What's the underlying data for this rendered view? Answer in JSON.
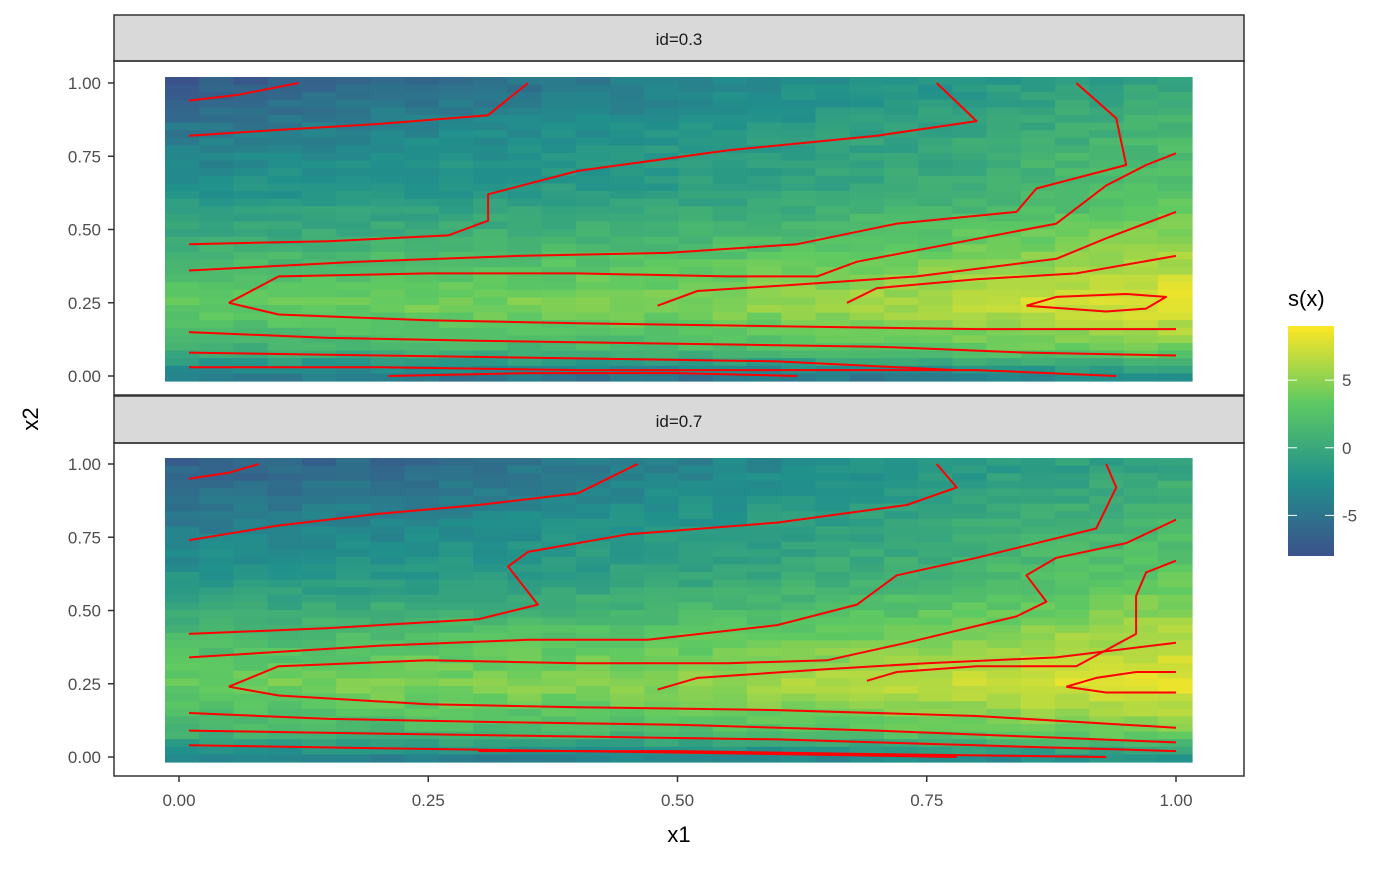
{
  "chart_data": {
    "type": "heatmap",
    "title": "",
    "xlabel": "x1",
    "ylabel": "x2",
    "xlim": [
      0,
      1
    ],
    "ylim": [
      0,
      1
    ],
    "x_ticks": [
      "0.00",
      "0.25",
      "0.50",
      "0.75",
      "1.00"
    ],
    "y_ticks": [
      "0.00",
      "0.25",
      "0.50",
      "0.75",
      "1.00"
    ],
    "grid": false,
    "legend": {
      "title": "s(x)",
      "position": "right",
      "range": [
        -8,
        9
      ],
      "ticks": [
        "-5",
        "0",
        "5"
      ],
      "colors": [
        "#3b528b",
        "#21918c",
        "#5ec962",
        "#fde725"
      ]
    },
    "contour_color": "#ff0000",
    "facets": [
      {
        "strip_label": "id=0.3",
        "heat_field": {
          "grid_x": [
            0,
            0.25,
            0.5,
            0.75,
            1.0
          ],
          "grid_y": [
            0,
            0.1,
            0.25,
            0.4,
            0.6,
            0.8,
            1.0
          ],
          "values": [
            [
              -4.5,
              -5.5,
              -6.0,
              -5.0,
              -3.5
            ],
            [
              0.5,
              1.0,
              1.5,
              2.5,
              4.0
            ],
            [
              3.0,
              4.0,
              4.5,
              6.5,
              8.5
            ],
            [
              1.0,
              2.0,
              2.5,
              4.0,
              6.0
            ],
            [
              -2.0,
              -1.5,
              -1.0,
              0.5,
              3.0
            ],
            [
              -4.5,
              -3.0,
              -2.0,
              -0.5,
              1.5
            ],
            [
              -7.5,
              -6.0,
              -4.0,
              -2.0,
              -0.5
            ]
          ]
        },
        "contours": [
          [
            [
              0.01,
              0.94
            ],
            [
              0.06,
              0.96
            ],
            [
              0.12,
              1.0
            ]
          ],
          [
            [
              0.01,
              0.82
            ],
            [
              0.1,
              0.84
            ],
            [
              0.2,
              0.86
            ],
            [
              0.31,
              0.89
            ],
            [
              0.35,
              1.0
            ]
          ],
          [
            [
              0.01,
              0.45
            ],
            [
              0.15,
              0.46
            ],
            [
              0.27,
              0.48
            ],
            [
              0.31,
              0.53
            ],
            [
              0.31,
              0.62
            ],
            [
              0.4,
              0.7
            ],
            [
              0.55,
              0.77
            ],
            [
              0.7,
              0.82
            ],
            [
              0.8,
              0.87
            ],
            [
              0.76,
              1.0
            ]
          ],
          [
            [
              0.01,
              0.36
            ],
            [
              0.18,
              0.39
            ],
            [
              0.34,
              0.41
            ],
            [
              0.49,
              0.42
            ],
            [
              0.62,
              0.45
            ],
            [
              0.72,
              0.52
            ],
            [
              0.84,
              0.56
            ],
            [
              0.86,
              0.64
            ],
            [
              0.95,
              0.72
            ],
            [
              0.94,
              0.88
            ],
            [
              0.9,
              1.0
            ]
          ],
          [
            [
              0.05,
              0.25
            ],
            [
              0.1,
              0.34
            ],
            [
              0.25,
              0.35
            ],
            [
              0.4,
              0.35
            ],
            [
              0.55,
              0.34
            ],
            [
              0.64,
              0.34
            ],
            [
              0.68,
              0.39
            ],
            [
              0.88,
              0.52
            ],
            [
              0.93,
              0.65
            ],
            [
              0.97,
              0.72
            ],
            [
              1.0,
              0.76
            ]
          ],
          [
            [
              0.48,
              0.24
            ],
            [
              0.52,
              0.29
            ],
            [
              0.61,
              0.31
            ],
            [
              0.74,
              0.34
            ],
            [
              0.88,
              0.4
            ],
            [
              0.93,
              0.47
            ],
            [
              1.0,
              0.56
            ]
          ],
          [
            [
              0.67,
              0.25
            ],
            [
              0.7,
              0.3
            ],
            [
              0.8,
              0.33
            ],
            [
              0.9,
              0.35
            ],
            [
              1.0,
              0.41
            ]
          ],
          [
            [
              0.85,
              0.24
            ],
            [
              0.88,
              0.27
            ],
            [
              0.95,
              0.28
            ],
            [
              0.99,
              0.27
            ],
            [
              0.97,
              0.23
            ],
            [
              0.93,
              0.22
            ],
            [
              0.89,
              0.23
            ],
            [
              0.85,
              0.24
            ]
          ],
          [
            [
              0.05,
              0.25
            ],
            [
              0.1,
              0.21
            ],
            [
              0.25,
              0.19
            ],
            [
              0.4,
              0.18
            ],
            [
              0.6,
              0.17
            ],
            [
              0.8,
              0.16
            ],
            [
              1.0,
              0.16
            ]
          ],
          [
            [
              0.01,
              0.15
            ],
            [
              0.15,
              0.13
            ],
            [
              0.3,
              0.12
            ],
            [
              0.5,
              0.11
            ],
            [
              0.7,
              0.1
            ],
            [
              0.85,
              0.08
            ],
            [
              1.0,
              0.07
            ]
          ],
          [
            [
              0.01,
              0.08
            ],
            [
              0.2,
              0.07
            ],
            [
              0.4,
              0.06
            ],
            [
              0.6,
              0.05
            ],
            [
              0.78,
              0.02
            ]
          ],
          [
            [
              0.01,
              0.03
            ],
            [
              0.2,
              0.03
            ],
            [
              0.4,
              0.02
            ],
            [
              0.6,
              0.02
            ],
            [
              0.8,
              0.02
            ],
            [
              0.94,
              0.0
            ]
          ],
          [
            [
              0.21,
              0.0
            ],
            [
              0.35,
              0.01
            ],
            [
              0.5,
              0.01
            ],
            [
              0.62,
              0.0
            ]
          ]
        ]
      },
      {
        "strip_label": "id=0.7",
        "heat_field": {
          "grid_x": [
            0,
            0.25,
            0.5,
            0.75,
            1.0
          ],
          "grid_y": [
            0,
            0.1,
            0.25,
            0.4,
            0.6,
            0.8,
            1.0
          ],
          "values": [
            [
              -4.0,
              -4.5,
              -4.5,
              -4.0,
              -3.0
            ],
            [
              1.0,
              1.5,
              2.0,
              3.0,
              4.5
            ],
            [
              3.5,
              4.5,
              5.0,
              7.0,
              8.5
            ],
            [
              1.5,
              2.5,
              3.0,
              4.5,
              6.5
            ],
            [
              -2.0,
              -1.5,
              -0.5,
              1.0,
              3.5
            ],
            [
              -4.5,
              -3.5,
              -2.0,
              -0.5,
              1.5
            ],
            [
              -7.0,
              -6.0,
              -4.0,
              -2.0,
              -0.5
            ]
          ]
        },
        "contours": [
          [
            [
              0.01,
              0.95
            ],
            [
              0.05,
              0.97
            ],
            [
              0.08,
              1.0
            ]
          ],
          [
            [
              0.01,
              0.74
            ],
            [
              0.1,
              0.79
            ],
            [
              0.2,
              0.83
            ],
            [
              0.3,
              0.86
            ],
            [
              0.4,
              0.9
            ],
            [
              0.46,
              1.0
            ]
          ],
          [
            [
              0.01,
              0.42
            ],
            [
              0.15,
              0.44
            ],
            [
              0.3,
              0.47
            ],
            [
              0.36,
              0.52
            ],
            [
              0.33,
              0.65
            ],
            [
              0.35,
              0.7
            ],
            [
              0.45,
              0.76
            ],
            [
              0.6,
              0.8
            ],
            [
              0.73,
              0.86
            ],
            [
              0.78,
              0.92
            ],
            [
              0.76,
              1.0
            ]
          ],
          [
            [
              0.01,
              0.34
            ],
            [
              0.2,
              0.38
            ],
            [
              0.35,
              0.4
            ],
            [
              0.47,
              0.4
            ],
            [
              0.6,
              0.45
            ],
            [
              0.68,
              0.52
            ],
            [
              0.72,
              0.62
            ],
            [
              0.8,
              0.68
            ],
            [
              0.92,
              0.78
            ],
            [
              0.94,
              0.92
            ],
            [
              0.93,
              1.0
            ]
          ],
          [
            [
              0.05,
              0.24
            ],
            [
              0.1,
              0.31
            ],
            [
              0.25,
              0.33
            ],
            [
              0.4,
              0.32
            ],
            [
              0.55,
              0.32
            ],
            [
              0.65,
              0.33
            ],
            [
              0.73,
              0.39
            ],
            [
              0.84,
              0.48
            ],
            [
              0.87,
              0.53
            ],
            [
              0.85,
              0.62
            ],
            [
              0.88,
              0.68
            ],
            [
              0.95,
              0.73
            ],
            [
              1.0,
              0.81
            ]
          ],
          [
            [
              0.48,
              0.23
            ],
            [
              0.52,
              0.27
            ],
            [
              0.65,
              0.3
            ],
            [
              0.75,
              0.32
            ],
            [
              0.88,
              0.34
            ],
            [
              1.0,
              0.39
            ]
          ],
          [
            [
              0.69,
              0.26
            ],
            [
              0.72,
              0.29
            ],
            [
              0.8,
              0.31
            ],
            [
              0.9,
              0.31
            ],
            [
              0.96,
              0.42
            ],
            [
              0.96,
              0.55
            ],
            [
              0.97,
              0.63
            ],
            [
              1.0,
              0.67
            ]
          ],
          [
            [
              0.89,
              0.24
            ],
            [
              0.92,
              0.27
            ],
            [
              0.96,
              0.29
            ],
            [
              1.0,
              0.29
            ]
          ],
          [
            [
              0.89,
              0.24
            ],
            [
              0.93,
              0.22
            ],
            [
              1.0,
              0.22
            ]
          ],
          [
            [
              0.05,
              0.24
            ],
            [
              0.1,
              0.21
            ],
            [
              0.25,
              0.18
            ],
            [
              0.4,
              0.17
            ],
            [
              0.6,
              0.16
            ],
            [
              0.8,
              0.14
            ],
            [
              1.0,
              0.1
            ]
          ],
          [
            [
              0.01,
              0.15
            ],
            [
              0.15,
              0.13
            ],
            [
              0.3,
              0.12
            ],
            [
              0.5,
              0.11
            ],
            [
              0.7,
              0.09
            ],
            [
              0.85,
              0.07
            ],
            [
              1.0,
              0.05
            ]
          ],
          [
            [
              0.01,
              0.09
            ],
            [
              0.2,
              0.08
            ],
            [
              0.4,
              0.07
            ],
            [
              0.6,
              0.06
            ],
            [
              0.8,
              0.04
            ],
            [
              1.0,
              0.02
            ]
          ],
          [
            [
              0.01,
              0.04
            ],
            [
              0.2,
              0.03
            ],
            [
              0.4,
              0.02
            ],
            [
              0.6,
              0.01
            ],
            [
              0.78,
              0.0
            ]
          ],
          [
            [
              0.3,
              0.02
            ],
            [
              0.5,
              0.02
            ],
            [
              0.7,
              0.01
            ],
            [
              0.93,
              0.0
            ]
          ]
        ]
      }
    ]
  }
}
